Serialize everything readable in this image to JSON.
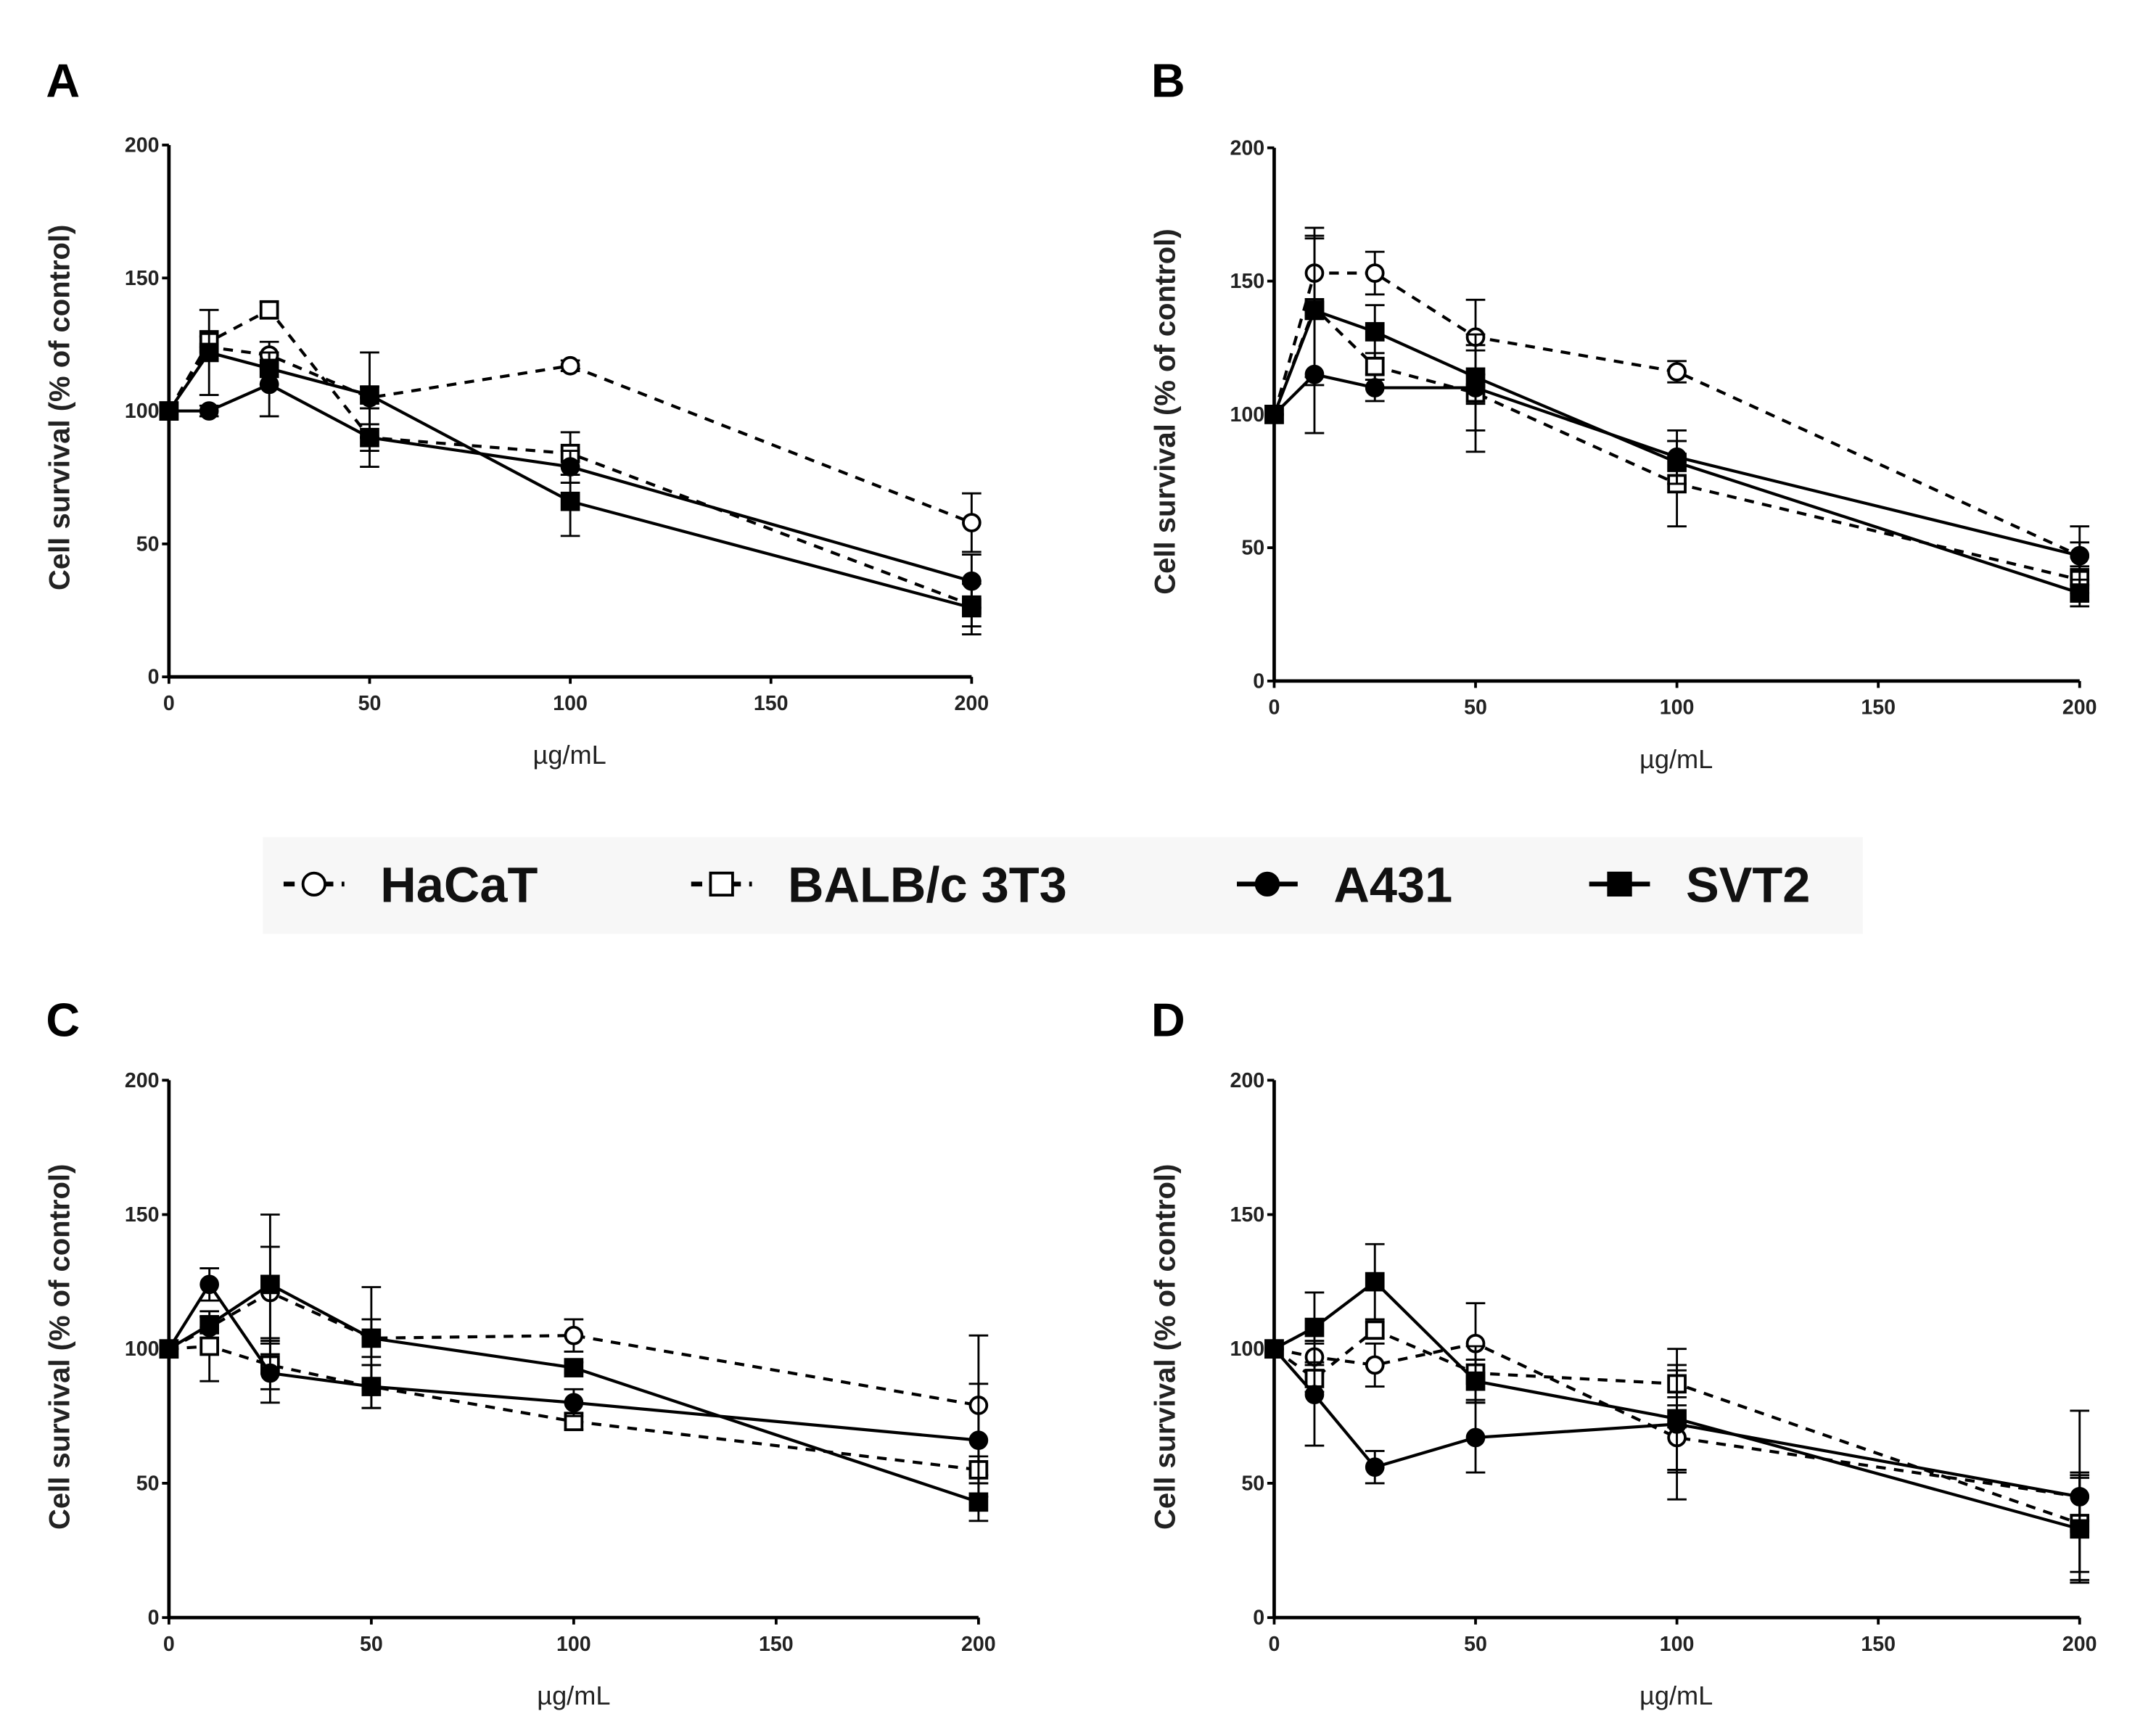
{
  "chart_data": {
    "type": "line",
    "legend": {
      "placement": "center",
      "entries": [
        {
          "name": "HaCaT",
          "marker": "open-circle",
          "line": "dashed"
        },
        {
          "name": "BALB/c 3T3",
          "marker": "open-square",
          "line": "dashed"
        },
        {
          "name": "A431",
          "marker": "filled-circle",
          "line": "solid"
        },
        {
          "name": "SVT2",
          "marker": "filled-square",
          "line": "solid"
        }
      ]
    },
    "x": [
      0,
      10,
      25,
      50,
      100,
      200
    ],
    "xlim": [
      0,
      200
    ],
    "ylim": [
      0,
      200
    ],
    "xticks": [
      0,
      50,
      100,
      150,
      200
    ],
    "yticks": [
      0,
      50,
      100,
      150,
      200
    ],
    "panels": [
      {
        "label": "A",
        "xlabel": "µg/mL",
        "ylabel": "Cell survival (% of control)",
        "series": [
          {
            "name": "HaCaT",
            "values": [
              100,
              124,
              121,
              105,
              117,
              58
            ],
            "errors": [
              0,
              4,
              5,
              4,
              2,
              11
            ]
          },
          {
            "name": "BALB/c 3T3",
            "values": [
              100,
              126,
              138,
              90,
              84,
              27
            ],
            "errors": [
              0,
              4,
              3,
              5,
              8,
              8
            ]
          },
          {
            "name": "A431",
            "values": [
              100,
              100,
              110,
              90,
              79,
              36
            ],
            "errors": [
              0,
              2,
              12,
              11,
              6,
              10
            ]
          },
          {
            "name": "SVT2",
            "values": [
              100,
              122,
              116,
              106,
              66,
              26
            ],
            "errors": [
              0,
              16,
              6,
              16,
              13,
              10
            ]
          }
        ]
      },
      {
        "label": "B",
        "xlabel": "µg/mL",
        "ylabel": "Cell survival (% of control)",
        "series": [
          {
            "name": "HaCaT",
            "values": [
              100,
              153,
              153,
              129,
              116,
              47
            ],
            "errors": [
              0,
              17,
              8,
              14,
              4,
              5
            ]
          },
          {
            "name": "BALB/c 3T3",
            "values": [
              100,
              140,
              118,
              108,
              74,
              38
            ],
            "errors": [
              0,
              26,
              5,
              22,
              16,
              5
            ]
          },
          {
            "name": "A431",
            "values": [
              100,
              115,
              110,
              110,
              84,
              47
            ],
            "errors": [
              0,
              22,
              5,
              16,
              10,
              11
            ]
          },
          {
            "name": "SVT2",
            "values": [
              100,
              139,
              131,
              114,
              82,
              33
            ],
            "errors": [
              0,
              28,
              10,
              10,
              8,
              5
            ]
          }
        ]
      },
      {
        "label": "C",
        "xlabel": "µg/mL",
        "ylabel": "Cell survival (% of control)",
        "series": [
          {
            "name": "HaCaT",
            "values": [
              100,
              108,
              121,
              104,
              105,
              79
            ],
            "errors": [
              0,
              4,
              17,
              7,
              6,
              26
            ]
          },
          {
            "name": "BALB/c 3T3",
            "values": [
              100,
              101,
              94,
              86,
              73,
              55
            ],
            "errors": [
              0,
              13,
              9,
              8,
              3,
              5
            ]
          },
          {
            "name": "A431",
            "values": [
              100,
              124,
              91,
              86,
              80,
              66
            ],
            "errors": [
              0,
              6,
              11,
              8,
              5,
              21
            ]
          },
          {
            "name": "SVT2",
            "values": [
              100,
              109,
              124,
              104,
              93,
              43
            ],
            "errors": [
              0,
              3,
              26,
              19,
              2,
              7
            ]
          }
        ]
      },
      {
        "label": "D",
        "xlabel": "µg/mL",
        "ylabel": "Cell survival (% of control)",
        "series": [
          {
            "name": "HaCaT",
            "values": [
              100,
              97,
              94,
              102,
              67,
              45
            ],
            "errors": [
              0,
              6,
              8,
              15,
              12,
              32
            ]
          },
          {
            "name": "BALB/c 3T3",
            "values": [
              100,
              89,
              107,
              91,
              87,
              35
            ],
            "errors": [
              0,
              5,
              3,
              10,
              5,
              18
            ]
          },
          {
            "name": "A431",
            "values": [
              100,
              83,
              56,
              67,
              72,
              45
            ],
            "errors": [
              0,
              19,
              6,
              13,
              28,
              9
            ]
          },
          {
            "name": "SVT2",
            "values": [
              100,
              108,
              125,
              88,
              74,
              33
            ],
            "errors": [
              0,
              13,
              14,
              8,
              20,
              19
            ]
          }
        ]
      }
    ]
  }
}
